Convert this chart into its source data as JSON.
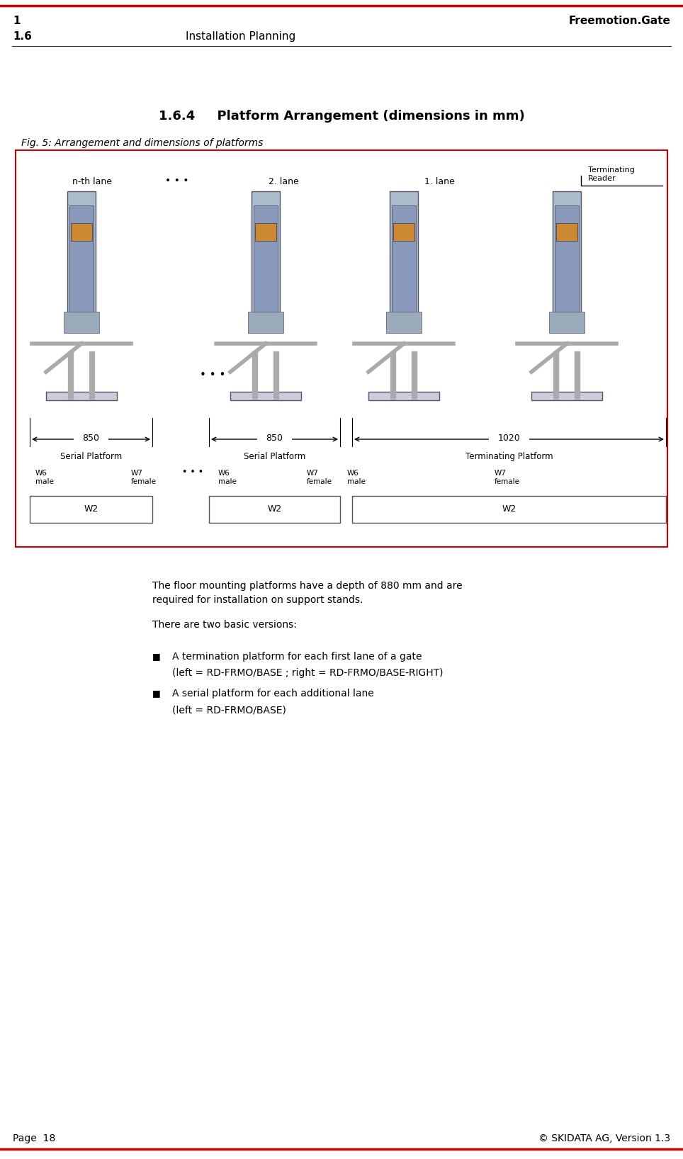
{
  "page_width": 9.64,
  "page_height": 16.36,
  "bg_color": "#ffffff",
  "top_border_color": "#cc0000",
  "bottom_border_color": "#cc0000",
  "header_left1": "1",
  "header_right1": "Freemotion.Gate",
  "header_left2": "1.6",
  "header_center2": "Installation Planning",
  "footer_left": "Page  18",
  "footer_right": "© SKIDATA AG, Version 1.3",
  "section_title": "1.6.4     Platform Arrangement (dimensions in mm)",
  "fig_caption": "Fig. 5: Arrangement and dimensions of platforms",
  "body_text1": "The floor mounting platforms have a depth of 880 mm and are\nrequired for installation on support stands.",
  "body_text2": "There are two basic versions:",
  "bullet1_line1": "A termination platform for each first lane of a gate",
  "bullet1_line2": "(left = RD-FRMO/BASE ; right = RD-FRMO/BASE-RIGHT)",
  "bullet2_line1": "A serial platform for each additional lane",
  "bullet2_line2": "(left = RD-FRMO/BASE)",
  "diagram_box_color": "#cc0000",
  "dim_850_1": "850",
  "dim_850_2": "850",
  "dim_1020": "1020",
  "label_nth": "n-th lane",
  "label_2nd": "2. lane",
  "label_1st": "1. lane",
  "label_terminating_reader": "Terminating\nReader",
  "label_serial1": "Serial Platform",
  "label_serial2": "Serial Platform",
  "label_terminating": "Terminating Platform",
  "label_W6_male_left": "W6\nmale",
  "label_W7_female_left": "W7\nfemale",
  "label_W6_male_mid": "W6\nmale",
  "label_W7_female_mid_l": "W7\nfemale",
  "label_W6_male_mid2": "W6\nmale",
  "label_W7_female_right": "W7\nfemale",
  "label_W2_1": "W2",
  "label_W2_2": "W2",
  "label_W2_3": "W2",
  "dots_color": "#333333"
}
